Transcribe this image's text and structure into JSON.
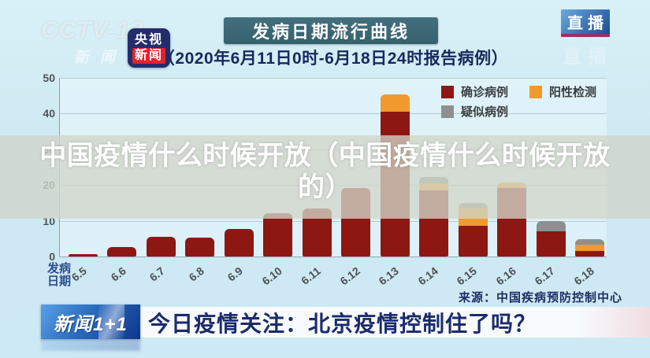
{
  "watermark": {
    "line1": "CCTV-13",
    "line2": "新闻"
  },
  "app_logo": {
    "line1": "央视",
    "line2": "新闻"
  },
  "header": {
    "title": "发病日期流行曲线",
    "subtitle": "（2020年6月11日0时-6月18日24时报告病例）",
    "live_badge": "直播",
    "live_ghost": "直播"
  },
  "overlay": {
    "line1": "中国疫情什么时候开放（中国疫情什么时候开放",
    "line2": "的）"
  },
  "chart_data": {
    "type": "bar",
    "stacked": true,
    "title": "发病日期流行曲线",
    "xlabel": "发病日期",
    "ylabel": "",
    "ylim": [
      0,
      50
    ],
    "yticks": [
      0,
      10,
      20,
      30,
      40,
      50
    ],
    "grid": "horizontal",
    "legend_position": "top-right",
    "categories": [
      "6.5",
      "6.6",
      "6.7",
      "6.8",
      "6.9",
      "6.10",
      "6.11",
      "6.12",
      "6.13",
      "6.14",
      "6.15",
      "6.16",
      "6.17",
      "6.18"
    ],
    "series": [
      {
        "name": "确诊病例",
        "color": "#8d1712",
        "values": [
          0.7,
          2.6,
          5.6,
          5.3,
          7.8,
          12.1,
          13.5,
          19.1,
          40.6,
          18.5,
          8.6,
          19.1,
          7.0,
          1.5
        ]
      },
      {
        "name": "阳性检测",
        "color": "#f09a2e",
        "values": [
          0,
          0,
          0,
          0,
          0,
          0,
          0,
          0,
          4.7,
          1.9,
          4.8,
          1.6,
          0,
          1.7
        ]
      },
      {
        "name": "疑似病例",
        "color": "#8c9093",
        "values": [
          0,
          0,
          0,
          0,
          0,
          0,
          0,
          0,
          0,
          1.8,
          1.5,
          0,
          3.0,
          1.6
        ]
      }
    ],
    "source": "来源：中国疾病预防控制中心"
  },
  "axis": {
    "x_title_line1": "发病",
    "x_title_line2": "日期"
  },
  "footer": {
    "logo": "新闻1+1",
    "headline": "今日疫情关注：北京疫情控制住了吗？"
  }
}
